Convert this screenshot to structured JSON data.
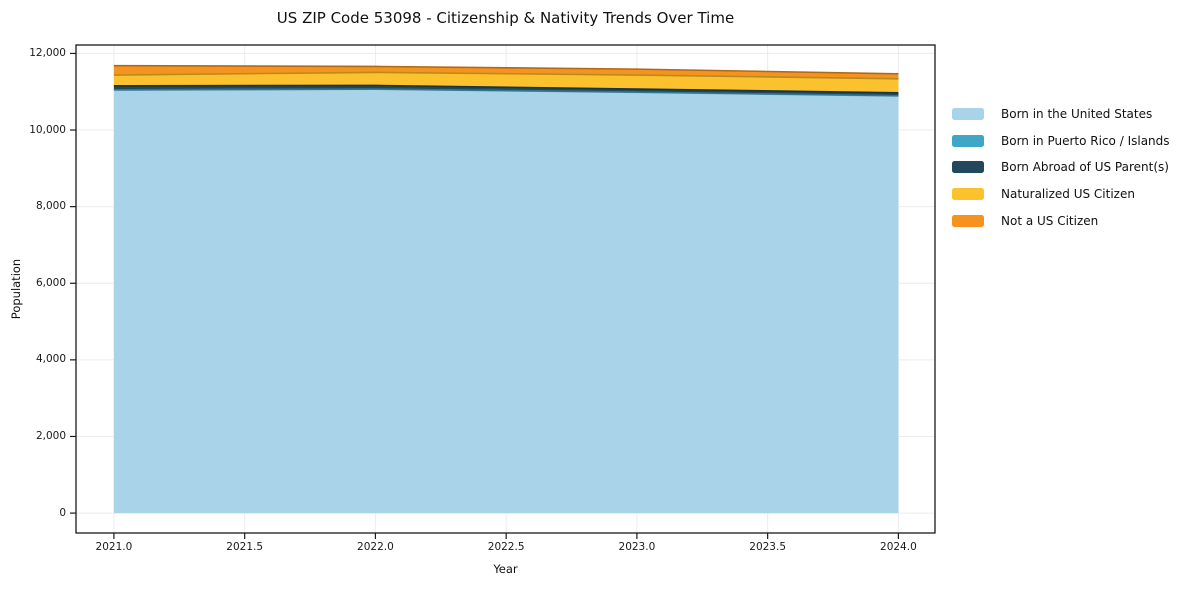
{
  "figure": {
    "background": "#ffffff",
    "axis_color": "#1a1a1a",
    "grid_color": "#ececec"
  },
  "chart_data": {
    "type": "area",
    "stacked": true,
    "title": "US ZIP Code 53098 - Citizenship & Nativity Trends Over Time",
    "xlabel": "Year",
    "ylabel": "Population",
    "x": [
      2021,
      2022,
      2023,
      2024
    ],
    "series": [
      {
        "name": "Born in the United States",
        "color": "#A8D3E8",
        "values": [
          11045,
          11065,
          10985,
          10890
        ]
      },
      {
        "name": "Born in Puerto Rico / Islands",
        "color": "#3FA6C6",
        "values": [
          5,
          5,
          5,
          5
        ]
      },
      {
        "name": "Born Abroad of US Parent(s)",
        "color": "#23485C",
        "values": [
          105,
          95,
          80,
          78
        ]
      },
      {
        "name": "Naturalized US Citizen",
        "color": "#FCC22E",
        "values": [
          280,
          340,
          365,
          365
        ]
      },
      {
        "name": "Not a US Citizen",
        "color": "#F6921E",
        "values": [
          245,
          155,
          155,
          130
        ]
      }
    ],
    "xlim": [
      2020.855,
      2024.14
    ],
    "ylim": [
      -520,
      12220
    ],
    "x_ticks": [
      2021.0,
      2021.5,
      2022.0,
      2022.5,
      2023.0,
      2023.5,
      2024.0
    ],
    "x_tick_labels": [
      "2021.0",
      "2021.5",
      "2022.0",
      "2022.5",
      "2023.0",
      "2023.5",
      "2024.0"
    ],
    "y_ticks": [
      0,
      2000,
      4000,
      6000,
      8000,
      10000,
      12000
    ],
    "y_tick_labels": [
      "0",
      "2,000",
      "4,000",
      "6,000",
      "8,000",
      "10,000",
      "12,000"
    ],
    "grid": true,
    "legend_position": "outside-right"
  }
}
